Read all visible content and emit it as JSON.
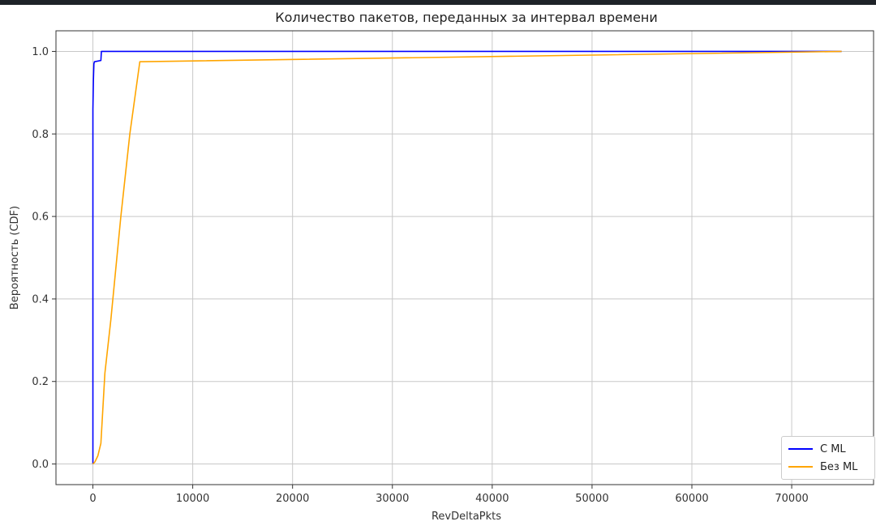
{
  "chart_data": {
    "type": "line",
    "title": "Количество пакетов, переданных за интервал времени",
    "xlabel": "RevDeltaPkts",
    "ylabel": "Вероятность (CDF)",
    "xlim": [
      -3700,
      78200
    ],
    "ylim": [
      -0.05,
      1.05
    ],
    "xticks": [
      0,
      10000,
      20000,
      30000,
      40000,
      50000,
      60000,
      70000
    ],
    "yticks": [
      0.0,
      0.2,
      0.4,
      0.6,
      0.8,
      1.0
    ],
    "ytick_labels": [
      "0.0",
      "0.2",
      "0.4",
      "0.6",
      "0.8",
      "1.0"
    ],
    "grid": true,
    "legend_position": "bottom-right",
    "series": [
      {
        "name": "С ML",
        "color": "#0000ff",
        "points": [
          [
            0,
            0.0
          ],
          [
            0,
            0.86
          ],
          [
            50,
            0.93
          ],
          [
            100,
            0.97
          ],
          [
            150,
            0.975
          ],
          [
            800,
            0.978
          ],
          [
            850,
            1.0
          ],
          [
            75000,
            1.0
          ]
        ]
      },
      {
        "name": "Без ML",
        "color": "#ffa500",
        "points": [
          [
            0,
            0.0
          ],
          [
            200,
            0.005
          ],
          [
            500,
            0.02
          ],
          [
            800,
            0.05
          ],
          [
            1200,
            0.22
          ],
          [
            1800,
            0.35
          ],
          [
            2800,
            0.6
          ],
          [
            3700,
            0.8
          ],
          [
            4700,
            0.975
          ],
          [
            75000,
            1.0
          ]
        ]
      }
    ]
  }
}
